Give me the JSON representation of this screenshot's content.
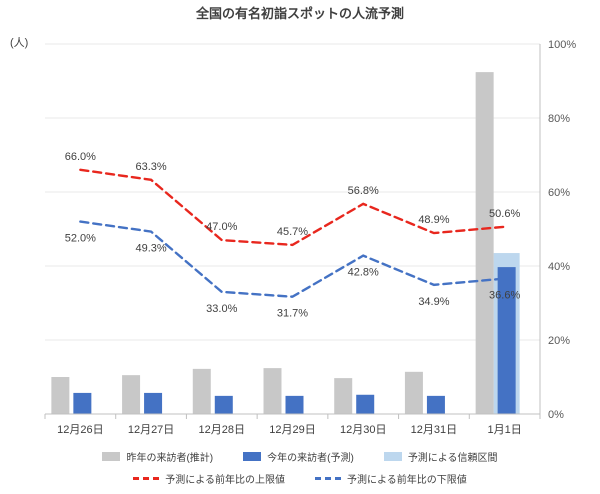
{
  "title": "全国の有名初詣スポットの人流予測",
  "left_axis_unit": "(人)",
  "chart_data": {
    "type": "combo-bar-line",
    "categories": [
      "12月26日",
      "12月27日",
      "12月28日",
      "12月29日",
      "12月30日",
      "12月31日",
      "1月1日"
    ],
    "bar_series": [
      {
        "key": "last-year",
        "name": "昨年の来訪者(推計)",
        "color": "#c8c8c8",
        "unit": "visual height as % of right axis (left axis has no numeric labels)",
        "values_pct": [
          10.0,
          10.5,
          12.2,
          12.4,
          9.7,
          11.4,
          92.4
        ]
      },
      {
        "key": "this-year",
        "name": "今年の来訪者(予測)",
        "color": "#4472c4",
        "values_pct": [
          5.7,
          5.7,
          4.9,
          4.9,
          5.2,
          4.9,
          39.7
        ]
      },
      {
        "key": "confidence-interval",
        "name": "予測による信頼区間",
        "color": "#bdd7ee",
        "values_pct": [
          0,
          0,
          0,
          0,
          0,
          0,
          43.5
        ]
      }
    ],
    "line_series": [
      {
        "key": "upper-bound",
        "name": "予測による前年比の上限値",
        "color": "#e8271e",
        "style": "dashed",
        "values": [
          66.0,
          63.3,
          47.0,
          45.7,
          56.8,
          48.9,
          50.6
        ]
      },
      {
        "key": "lower-bound",
        "name": "予測による前年比の下限値",
        "color": "#4472c4",
        "style": "dashed",
        "values": [
          52.0,
          49.3,
          33.0,
          31.7,
          42.8,
          34.9,
          36.6
        ]
      }
    ],
    "right_axis": {
      "min": 0,
      "max": 100,
      "ticks": [
        {
          "value": 0,
          "label": "0%"
        },
        {
          "value": 20,
          "label": "20%"
        },
        {
          "value": 40,
          "label": "40%"
        },
        {
          "value": 60,
          "label": "60%"
        },
        {
          "value": 80,
          "label": "80%"
        },
        {
          "value": 100,
          "label": "100%"
        }
      ]
    },
    "grid": true,
    "legend_position": "bottom"
  },
  "legend": {
    "row1": [
      {
        "key": "last-year",
        "type": "bar",
        "color": "#c8c8c8",
        "label": "昨年の来訪者(推計)"
      },
      {
        "key": "this-year",
        "type": "bar",
        "color": "#4472c4",
        "label": "今年の来訪者(予測)"
      },
      {
        "key": "confidence-interval",
        "type": "bar",
        "color": "#bdd7ee",
        "label": "予測による信頼区間"
      }
    ],
    "row2": [
      {
        "key": "upper-bound",
        "type": "dashed-line",
        "color": "#e8271e",
        "label": "予測による前年比の上限値"
      },
      {
        "key": "lower-bound",
        "type": "dashed-line",
        "color": "#4472c4",
        "label": "予測による前年比の下限値"
      }
    ]
  }
}
